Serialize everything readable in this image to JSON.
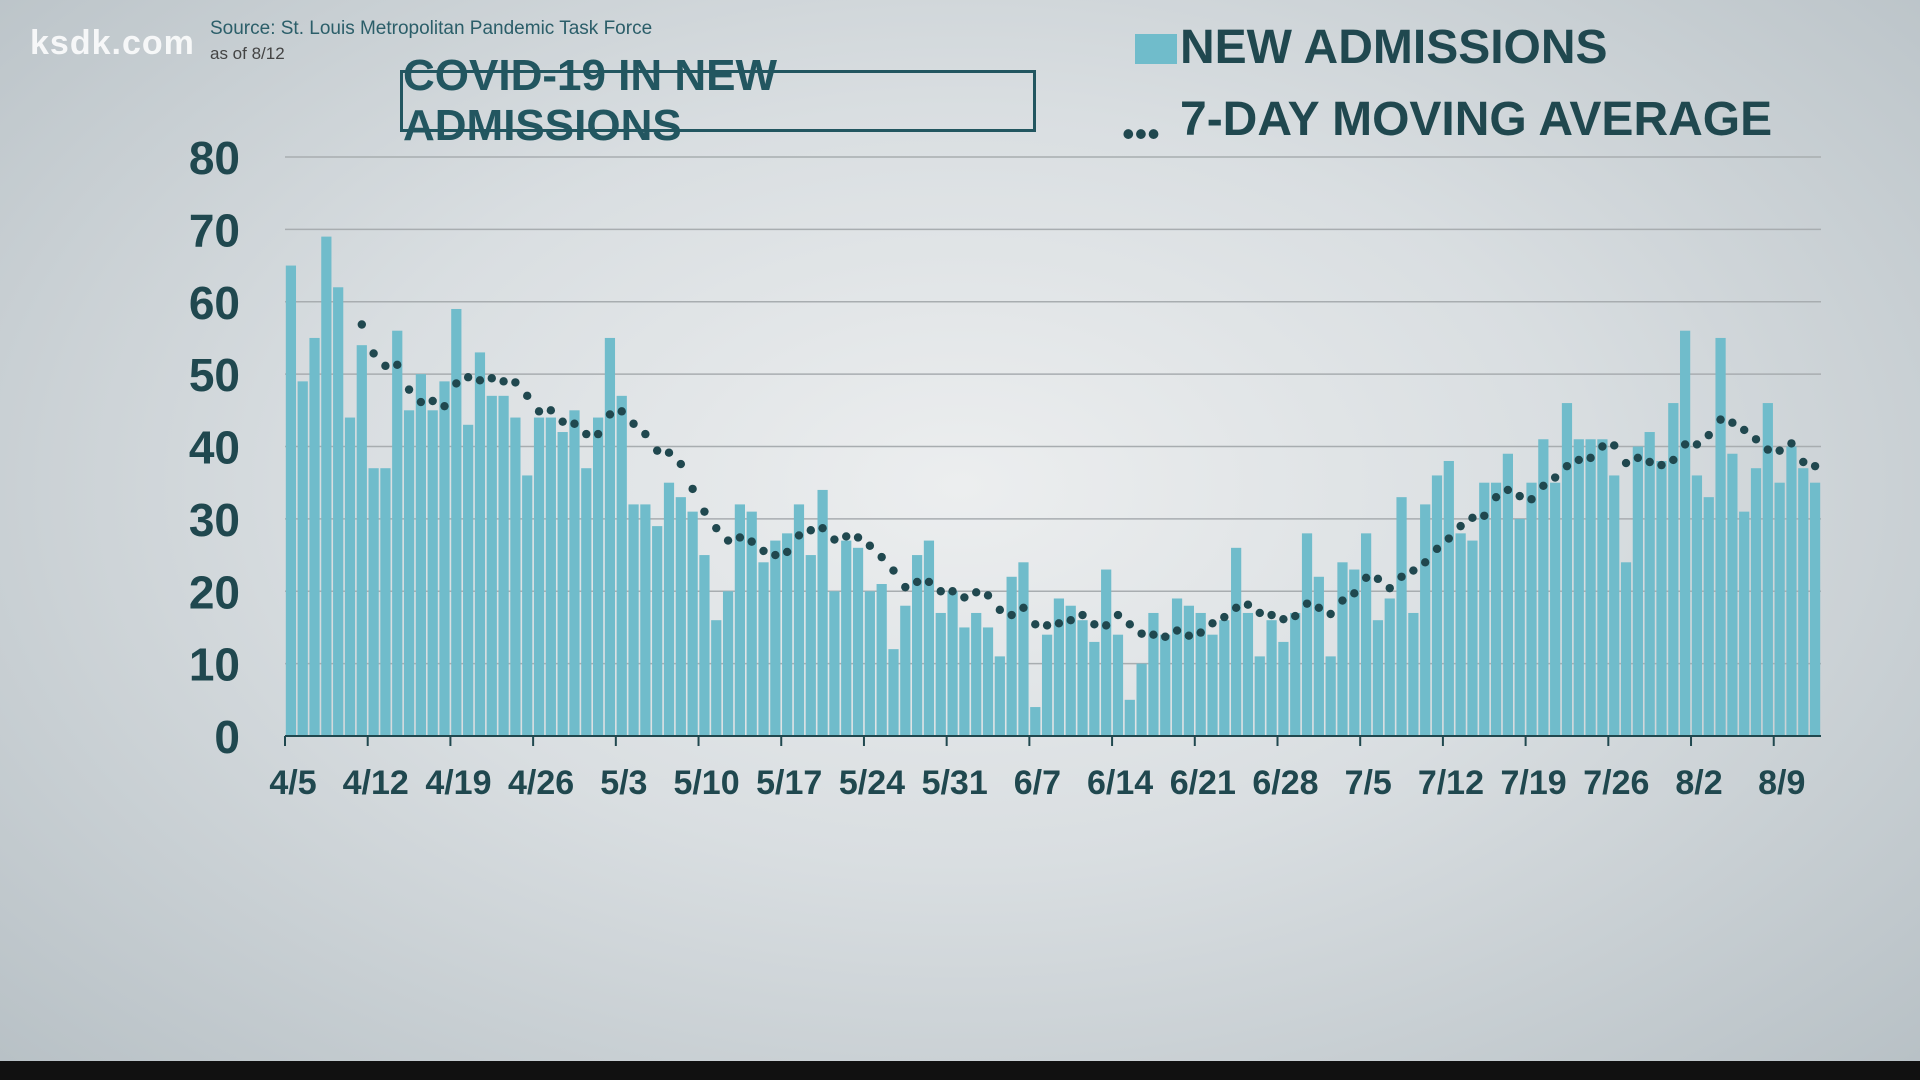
{
  "source": "Source: St. Louis Metropolitan Pandemic Task Force",
  "as_of": "as of 8/12",
  "logo": "ksdk.com",
  "colors": {
    "bar": "#70bccb",
    "avg": "#20484f",
    "text": "#20484f"
  },
  "chart_data": {
    "type": "bar",
    "title": "COVID-19 IN NEW ADMISSIONS",
    "xlabel": "",
    "ylabel": "",
    "ylim": [
      0,
      80
    ],
    "yticks": [
      0,
      10,
      20,
      30,
      40,
      50,
      60,
      70,
      80
    ],
    "xtick_labels": [
      "4/5",
      "4/12",
      "4/19",
      "4/26",
      "5/3",
      "5/10",
      "5/17",
      "5/24",
      "5/31",
      "6/7",
      "6/14",
      "6/21",
      "6/28",
      "7/5",
      "7/12",
      "7/19",
      "7/26",
      "8/2",
      "8/9"
    ],
    "start_date": "4/5",
    "grid": true,
    "legend": {
      "position": "top-right",
      "entries": [
        "NEW ADMISSIONS",
        "7-DAY MOVING AVERAGE"
      ]
    },
    "series": [
      {
        "name": "NEW ADMISSIONS",
        "type": "bar",
        "values": [
          65,
          49,
          55,
          69,
          62,
          44,
          54,
          37,
          37,
          56,
          45,
          50,
          45,
          49,
          59,
          43,
          53,
          47,
          47,
          44,
          36,
          44,
          44,
          42,
          45,
          37,
          44,
          55,
          47,
          32,
          32,
          29,
          35,
          33,
          31,
          25,
          16,
          20,
          32,
          31,
          24,
          27,
          28,
          32,
          25,
          34,
          20,
          27,
          26,
          20,
          21,
          12,
          18,
          25,
          27,
          17,
          20,
          15,
          17,
          15,
          11,
          22,
          24,
          4,
          14,
          19,
          18,
          16,
          13,
          23,
          14,
          5,
          10,
          17,
          14,
          19,
          18,
          17,
          14,
          16,
          26,
          17,
          11,
          16,
          13,
          17,
          28,
          22,
          11,
          24,
          23,
          28,
          16,
          19,
          33,
          17,
          32,
          36,
          38,
          28,
          27,
          35,
          35,
          39,
          30,
          35,
          41,
          35,
          46,
          41,
          41,
          41,
          36,
          24,
          40,
          42,
          38,
          46,
          56,
          36,
          33,
          55,
          39,
          31,
          37,
          46,
          35,
          40,
          37,
          35
        ]
      },
      {
        "name": "7-DAY MOVING AVERAGE",
        "type": "line-dotted",
        "window": 7
      }
    ]
  }
}
